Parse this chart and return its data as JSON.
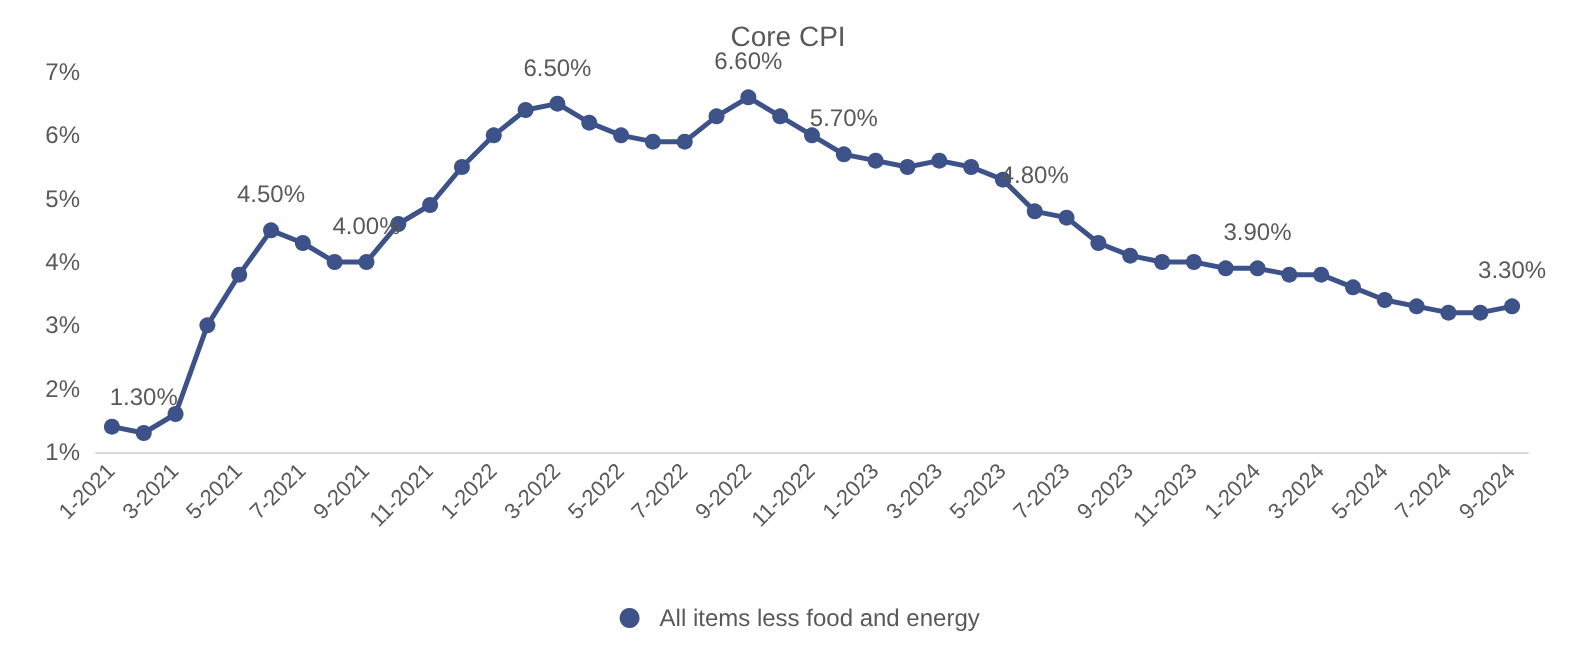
{
  "chart_data": {
    "type": "line",
    "title": "Core CPI",
    "categories": [
      "1-2021",
      null,
      "3-2021",
      null,
      "5-2021",
      null,
      "7-2021",
      null,
      "9-2021",
      null,
      "11-2021",
      null,
      "1-2022",
      null,
      "3-2022",
      null,
      "5-2022",
      null,
      "7-2022",
      null,
      "9-2022",
      null,
      "11-2022",
      null,
      "1-2023",
      null,
      "3-2023",
      null,
      "5-2023",
      null,
      "7-2023",
      null,
      "9-2023",
      null,
      "11-2023",
      null,
      "1-2024",
      null,
      "3-2024",
      null,
      "5-2024",
      null,
      "7-2024",
      null,
      "9-2024"
    ],
    "series": [
      {
        "name": "All items less food and energy",
        "color": "#3d5289",
        "values": [
          1.4,
          1.3,
          1.6,
          3.0,
          3.8,
          4.5,
          4.3,
          4.0,
          4.0,
          4.6,
          4.9,
          5.5,
          6.0,
          6.4,
          6.5,
          6.2,
          6.0,
          5.9,
          5.9,
          6.3,
          6.6,
          6.3,
          6.0,
          5.7,
          5.6,
          5.5,
          5.6,
          5.5,
          5.3,
          4.8,
          4.7,
          4.3,
          4.1,
          4.0,
          4.0,
          3.9,
          3.9,
          3.8,
          3.8,
          3.6,
          3.4,
          3.3,
          3.2,
          3.2,
          3.3
        ],
        "value_labels": [
          null,
          "1.30%",
          null,
          null,
          null,
          "4.50%",
          null,
          null,
          "4.00%",
          null,
          null,
          null,
          null,
          null,
          "6.50%",
          null,
          null,
          null,
          null,
          null,
          "6.60%",
          null,
          null,
          "5.70%",
          null,
          null,
          null,
          null,
          null,
          "4.80%",
          null,
          null,
          null,
          null,
          null,
          null,
          "3.90%",
          null,
          null,
          null,
          null,
          null,
          null,
          null,
          "3.30%"
        ]
      }
    ],
    "ylim": [
      1,
      7
    ],
    "yticks": [
      {
        "value": 1,
        "label": "1%"
      },
      {
        "value": 2,
        "label": "2%"
      },
      {
        "value": 3,
        "label": "3%"
      },
      {
        "value": 4,
        "label": "4%"
      },
      {
        "value": 5,
        "label": "5%"
      },
      {
        "value": 6,
        "label": "6%"
      },
      {
        "value": 7,
        "label": "7%"
      }
    ],
    "grid": false,
    "legend": "bottom",
    "marker": "circle",
    "line_style": "solid"
  }
}
